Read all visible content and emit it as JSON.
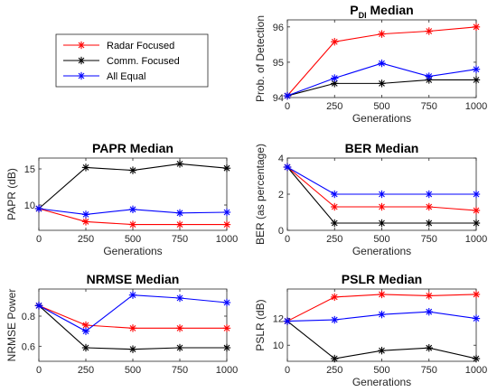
{
  "legend": [
    {
      "name": "Radar Focused",
      "color": "#ff0000"
    },
    {
      "name": "Comm. Focused",
      "color": "#000000"
    },
    {
      "name": "All Equal",
      "color": "#0000ff"
    }
  ],
  "chart_data": [
    {
      "id": "pdi",
      "type": "line",
      "title_main": "P",
      "title_sub": "DI",
      "title_rest": " Median",
      "xlabel": "Generations",
      "ylabel": "Prob. of Detection",
      "x": [
        0,
        250,
        500,
        750,
        1000
      ],
      "xticks": [
        "0",
        "250",
        "500",
        "750",
        "1000"
      ],
      "xlim": [
        0,
        1000
      ],
      "ylim": [
        94,
        96.2
      ],
      "yticks": [
        94,
        95,
        96
      ],
      "series": [
        {
          "name": "Radar Focused",
          "color": "#ff0000",
          "values": [
            94.05,
            95.58,
            95.8,
            95.88,
            96.0
          ]
        },
        {
          "name": "Comm. Focused",
          "color": "#000000",
          "values": [
            94.05,
            94.4,
            94.4,
            94.5,
            94.5
          ]
        },
        {
          "name": "All Equal",
          "color": "#0000ff",
          "values": [
            94.05,
            94.55,
            94.97,
            94.6,
            94.8
          ]
        }
      ]
    },
    {
      "id": "papr",
      "type": "line",
      "title_main": "PAPR Median",
      "xlabel": "Generations",
      "ylabel": "PAPR (dB)",
      "x": [
        0,
        250,
        500,
        750,
        1000
      ],
      "xticks": [
        "0",
        "250",
        "500",
        "750",
        "1000"
      ],
      "xlim": [
        0,
        1000
      ],
      "ylim": [
        6.5,
        16.5
      ],
      "yticks": [
        10,
        15
      ],
      "series": [
        {
          "name": "Radar Focused",
          "color": "#ff0000",
          "values": [
            9.5,
            7.7,
            7.3,
            7.3,
            7.3
          ]
        },
        {
          "name": "Comm. Focused",
          "color": "#000000",
          "values": [
            9.5,
            15.2,
            14.8,
            15.7,
            15.1
          ]
        },
        {
          "name": "All Equal",
          "color": "#0000ff",
          "values": [
            9.5,
            8.7,
            9.4,
            8.9,
            9.0
          ]
        }
      ]
    },
    {
      "id": "ber",
      "type": "line",
      "title_main": "BER Median",
      "xlabel": "Generations",
      "ylabel": "BER (as percentage)",
      "x": [
        0,
        250,
        500,
        750,
        1000
      ],
      "xticks": [
        "0",
        "250",
        "500",
        "750",
        "1000"
      ],
      "xlim": [
        0,
        1000
      ],
      "ylim": [
        0,
        4
      ],
      "yticks": [
        0,
        2,
        4
      ],
      "series": [
        {
          "name": "Radar Focused",
          "color": "#ff0000",
          "values": [
            3.5,
            1.3,
            1.3,
            1.3,
            1.1
          ]
        },
        {
          "name": "Comm. Focused",
          "color": "#000000",
          "values": [
            3.5,
            0.4,
            0.4,
            0.4,
            0.4
          ]
        },
        {
          "name": "All Equal",
          "color": "#0000ff",
          "values": [
            3.5,
            2.0,
            2.0,
            2.0,
            2.0
          ]
        }
      ]
    },
    {
      "id": "nrmse",
      "type": "line",
      "title_main": "NRMSE Median",
      "xlabel": "",
      "ylabel": "NRMSE Power",
      "x": [
        0,
        250,
        500,
        750,
        1000
      ],
      "xticks": [
        "0",
        "250",
        "500",
        "750",
        "1000"
      ],
      "xlim": [
        0,
        1000
      ],
      "ylim": [
        0.5,
        0.98
      ],
      "yticks": [
        0.6,
        0.8
      ],
      "series": [
        {
          "name": "Radar Focused",
          "color": "#ff0000",
          "values": [
            0.87,
            0.74,
            0.72,
            0.72,
            0.72
          ]
        },
        {
          "name": "Comm. Focused",
          "color": "#000000",
          "values": [
            0.87,
            0.59,
            0.58,
            0.59,
            0.59
          ]
        },
        {
          "name": "All Equal",
          "color": "#0000ff",
          "values": [
            0.87,
            0.7,
            0.94,
            0.92,
            0.89
          ]
        }
      ]
    },
    {
      "id": "pslr",
      "type": "line",
      "title_main": "PSLR Median",
      "xlabel": "Generations",
      "ylabel": "PSLR (dB)",
      "x": [
        0,
        250,
        500,
        750,
        1000
      ],
      "xticks": [
        "0",
        "250",
        "500",
        "750",
        "1000"
      ],
      "xlim": [
        0,
        1000
      ],
      "ylim": [
        8.8,
        14.2
      ],
      "yticks": [
        10,
        12
      ],
      "series": [
        {
          "name": "Radar Focused",
          "color": "#ff0000",
          "values": [
            11.8,
            13.6,
            13.8,
            13.7,
            13.8
          ]
        },
        {
          "name": "Comm. Focused",
          "color": "#000000",
          "values": [
            11.8,
            9.0,
            9.6,
            9.8,
            9.0
          ]
        },
        {
          "name": "All Equal",
          "color": "#0000ff",
          "values": [
            11.8,
            11.9,
            12.3,
            12.5,
            12.0
          ]
        }
      ]
    }
  ]
}
